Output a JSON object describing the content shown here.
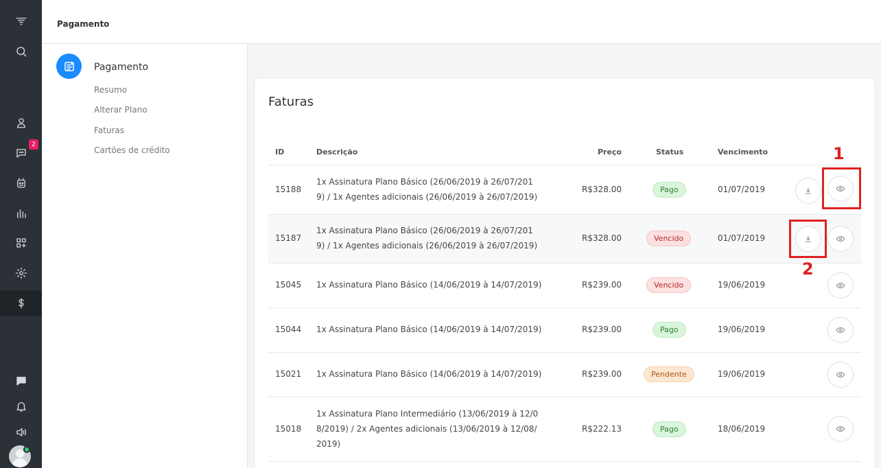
{
  "header": {
    "title": "Pagamento"
  },
  "rail": {
    "chat_badge": "2"
  },
  "subnav": {
    "heading": "Pagamento",
    "links": [
      "Resumo",
      "Alterar Plano",
      "Faturas",
      "Cartões de crédito"
    ]
  },
  "invoices": {
    "title": "Faturas",
    "columns": {
      "id": "ID",
      "description": "Descrição",
      "price": "Preço",
      "status": "Status",
      "due": "Vencimento"
    },
    "rows": [
      {
        "id": "15188",
        "desc1": "1x Assinatura Plano Básico (26/06/2019 à 26/07/201",
        "desc2": "9) / 1x Agentes adicionais (26/06/2019 à 26/07/2019)",
        "desc3": "",
        "price": "R$328.00",
        "status": "Pago",
        "due": "01/07/2019"
      },
      {
        "id": "15187",
        "desc1": "1x Assinatura Plano Básico (26/06/2019 à 26/07/201",
        "desc2": "9) / 1x Agentes adicionais (26/06/2019 à 26/07/2019)",
        "desc3": "",
        "price": "R$328.00",
        "status": "Vencido",
        "due": "01/07/2019"
      },
      {
        "id": "15045",
        "desc1": "1x Assinatura Plano Básico (14/06/2019 à 14/07/2019)",
        "desc2": "",
        "desc3": "",
        "price": "R$239.00",
        "status": "Vencido",
        "due": "19/06/2019"
      },
      {
        "id": "15044",
        "desc1": "1x Assinatura Plano Básico (14/06/2019 à 14/07/2019)",
        "desc2": "",
        "desc3": "",
        "price": "R$239.00",
        "status": "Pago",
        "due": "19/06/2019"
      },
      {
        "id": "15021",
        "desc1": "1x Assinatura Plano Básico (14/06/2019 à 14/07/2019)",
        "desc2": "",
        "desc3": "",
        "price": "R$239.00",
        "status": "Pendente",
        "due": "19/06/2019"
      },
      {
        "id": "15018",
        "desc1": "1x Assinatura Plano Intermediário (13/06/2019 à 12/0",
        "desc2": "8/2019) / 2x Agentes adicionais (13/06/2019 à 12/08/",
        "desc3": "2019)",
        "price": "R$222.13",
        "status": "Pago",
        "due": "18/06/2019"
      }
    ]
  },
  "annotations": {
    "marker1": "1",
    "marker2": "2"
  },
  "colors": {
    "accent": "#1a8cff",
    "annotation": "#e02020",
    "rail": "#2b3136"
  }
}
